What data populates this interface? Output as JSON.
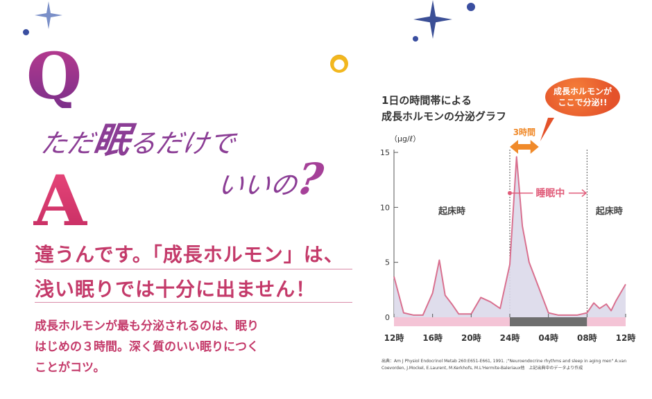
{
  "qa": {
    "q_letter": "Q",
    "q_line1_a": "ただ",
    "q_line1_b": "眠",
    "q_line1_c": "るだけで",
    "q_line2": "いいの",
    "q_mark": "?",
    "a_letter": "A",
    "answer_line1": "違うんです。「成長ホルモン」は、",
    "answer_line2": "浅い眠りでは十分に出ません！",
    "body": "成長ホルモンが最も分泌されるのは、眠り\nはじめの３時間。深く質のいい眠りにつく\nことがコツ。"
  },
  "chart": {
    "title": "1日の時間帯による\n成長ホルモンの分泌グラフ",
    "callout_line1": "成長ホルモンが",
    "callout_line2": "ここで分泌!!",
    "unit": "（μg/ℓ）",
    "source": "出典：Am J Physiol Endocrinol Metab 260:E651-E661, 1991. ;\"Neuroendocrine rhythms and sleep in aging men\" A.van Coevorden, J.Mockel, E.Laurent, M.Kerkhofs, M.L'Hermite-Baleriaux他　上記出典中のデータより作成"
  },
  "chart_data": {
    "type": "area",
    "ylabel": "（μg/ℓ）",
    "ylim": [
      0,
      15
    ],
    "yticks": [
      0,
      5,
      10,
      15
    ],
    "xlim": [
      12,
      36
    ],
    "x_tick_values": [
      12,
      16,
      20,
      24,
      28,
      32,
      36
    ],
    "x_tick_labels": [
      "12時",
      "16時",
      "20時",
      "24時",
      "04時",
      "08時",
      "12時"
    ],
    "series": [
      {
        "x": [
          12,
          13,
          14,
          15,
          16,
          16.7,
          17.3,
          18,
          18.7,
          20,
          21,
          22,
          23,
          24,
          24.7,
          25.3,
          26,
          27,
          28,
          29,
          30,
          31,
          32,
          32.7,
          33.3,
          34,
          34.5,
          35,
          36
        ],
        "values": [
          3.7,
          0.4,
          0.2,
          0.2,
          2.2,
          5.2,
          2.0,
          1.2,
          0.3,
          0.3,
          1.8,
          1.4,
          0.8,
          4.8,
          14.6,
          8.3,
          5.0,
          2.7,
          0.4,
          0.2,
          0.2,
          0.2,
          0.4,
          1.3,
          0.8,
          1.2,
          0.6,
          1.5,
          3.0
        ],
        "color": "#d9708f"
      }
    ],
    "annotations": {
      "awake_left": "起床時",
      "awake_right": "起床時",
      "sleeping": "睡眠中",
      "first_hours": "3時間",
      "sleep_start_x": 24,
      "sleep_end_x": 32,
      "first_hours_range": [
        24,
        27
      ]
    },
    "colors": {
      "line": "#d9708f",
      "fill": "#dcd9ea",
      "awake_band": "#f4c4d6",
      "sleep_band": "#6e6e6e",
      "arrow": "#f08a2a",
      "sleep_arrow": "#e05a78"
    }
  }
}
